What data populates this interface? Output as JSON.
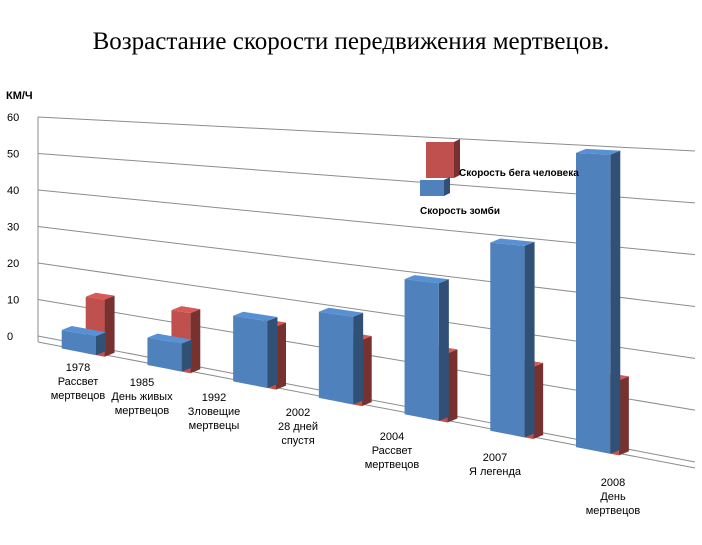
{
  "chart_data": {
    "type": "bar",
    "title": "Возрастание скорости передвижения мертвецов.",
    "ylabel": "КМ/Ч",
    "xlabel": "",
    "ylim": [
      0,
      60
    ],
    "yticks": [
      "0",
      "10",
      "20",
      "30",
      "40",
      "50",
      "60"
    ],
    "categories": [
      "1978 Рассвет мертвецов",
      "1985 День живых мертвецов",
      "1992 Зловещие мертвецы",
      "2002 28 дней спустя",
      "2004 Рассвет мертвецов",
      "2007 Я легенда",
      "2008 День мертвецов"
    ],
    "category_lines": [
      [
        "1978",
        "Рассвет",
        "мертвецов"
      ],
      [
        "1985",
        "День живых",
        "мертвецов"
      ],
      [
        "1992",
        "Зловещие",
        "мертвецы"
      ],
      [
        "2002",
        "28 дней",
        "спустя"
      ],
      [
        "2004",
        "Рассвет",
        "мертвецов"
      ],
      [
        "2007",
        "Я легенда"
      ],
      [
        "2008",
        "День",
        "мертвецов"
      ]
    ],
    "series": [
      {
        "name": "Скорость бега человека",
        "color": "#c0504d",
        "values": [
          15,
          15,
          15,
          15,
          15,
          15,
          15
        ]
      },
      {
        "name": "Скорость зомби",
        "color": "#4f81bd",
        "values": [
          5,
          7,
          16,
          20,
          30,
          40,
          60
        ]
      }
    ],
    "legend_position": "top-right",
    "grid": true
  }
}
